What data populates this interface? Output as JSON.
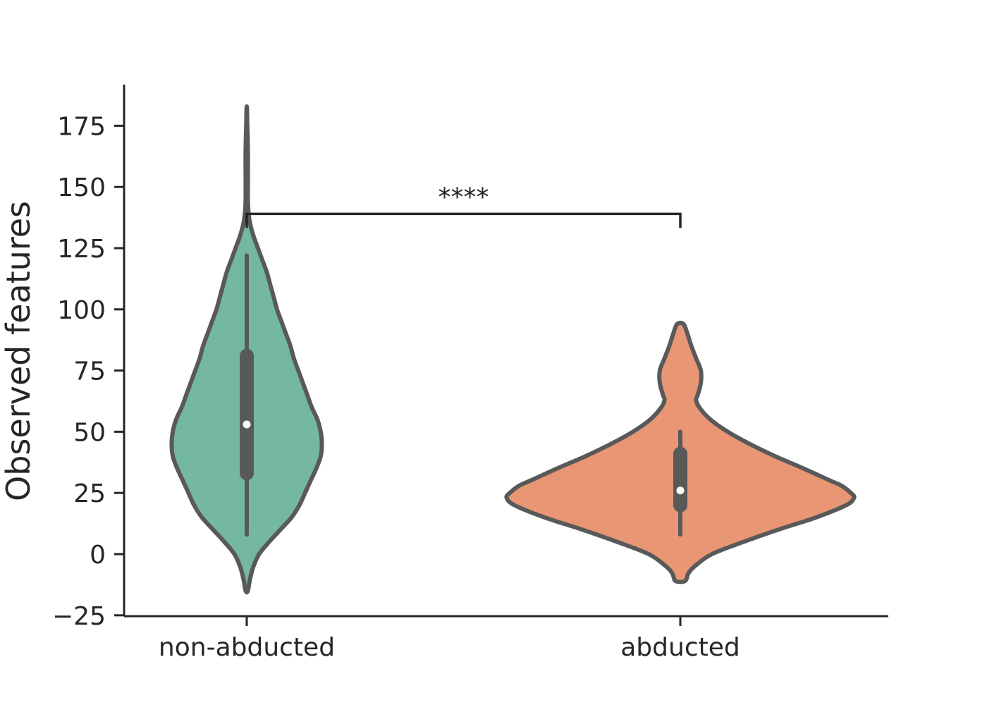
{
  "chart_data": {
    "type": "violin",
    "title": "",
    "xlabel": "",
    "ylabel": "Observed features",
    "ylim": [
      -25,
      192
    ],
    "yticks": [
      -25,
      0,
      25,
      50,
      75,
      100,
      125,
      150,
      175
    ],
    "ytick_labels": [
      "−25",
      "0",
      "25",
      "50",
      "75",
      "100",
      "125",
      "150",
      "175"
    ],
    "categories": [
      "non-abducted",
      "abducted"
    ],
    "grid": false,
    "legend": "none",
    "series": [
      {
        "category": "non-abducted",
        "color": "#74b7a2",
        "whisker": [
          8,
          122
        ],
        "q1": 33,
        "median": 53,
        "q3": 81,
        "density_profile": [
          [
            -15,
            0.01
          ],
          [
            -10,
            0.03
          ],
          [
            -5,
            0.06
          ],
          [
            0,
            0.11
          ],
          [
            5,
            0.2
          ],
          [
            10,
            0.3
          ],
          [
            15,
            0.4
          ],
          [
            20,
            0.47
          ],
          [
            25,
            0.52
          ],
          [
            30,
            0.57
          ],
          [
            35,
            0.62
          ],
          [
            40,
            0.66
          ],
          [
            45,
            0.67
          ],
          [
            50,
            0.66
          ],
          [
            55,
            0.63
          ],
          [
            60,
            0.58
          ],
          [
            65,
            0.54
          ],
          [
            70,
            0.5
          ],
          [
            75,
            0.46
          ],
          [
            80,
            0.42
          ],
          [
            85,
            0.39
          ],
          [
            90,
            0.35
          ],
          [
            95,
            0.31
          ],
          [
            100,
            0.27
          ],
          [
            105,
            0.24
          ],
          [
            110,
            0.21
          ],
          [
            115,
            0.18
          ],
          [
            120,
            0.14
          ],
          [
            125,
            0.1
          ],
          [
            130,
            0.06
          ],
          [
            135,
            0.03
          ],
          [
            140,
            0.015
          ],
          [
            145,
            0.01
          ],
          [
            150,
            0.01
          ],
          [
            155,
            0.01
          ],
          [
            160,
            0.011
          ],
          [
            165,
            0.01
          ],
          [
            170,
            0.008
          ],
          [
            175,
            0.005
          ],
          [
            182,
            0.002
          ]
        ]
      },
      {
        "category": "abducted",
        "color": "#e89674",
        "whisker": [
          8,
          50
        ],
        "q1": 20,
        "median": 26,
        "q3": 41,
        "density_profile": [
          [
            -11,
            0.03
          ],
          [
            -8,
            0.05
          ],
          [
            -5,
            0.09
          ],
          [
            0,
            0.2
          ],
          [
            5,
            0.4
          ],
          [
            10,
            0.62
          ],
          [
            15,
            0.86
          ],
          [
            20,
            1.05
          ],
          [
            23,
            1.1
          ],
          [
            25,
            1.08
          ],
          [
            28,
            1.02
          ],
          [
            30,
            0.95
          ],
          [
            35,
            0.78
          ],
          [
            40,
            0.6
          ],
          [
            45,
            0.44
          ],
          [
            50,
            0.3
          ],
          [
            55,
            0.19
          ],
          [
            60,
            0.12
          ],
          [
            63,
            0.1
          ],
          [
            65,
            0.11
          ],
          [
            70,
            0.13
          ],
          [
            75,
            0.13
          ],
          [
            80,
            0.1
          ],
          [
            85,
            0.07
          ],
          [
            90,
            0.045
          ],
          [
            94,
            0.02
          ]
        ]
      }
    ],
    "significance": {
      "label": "****",
      "from": "non-abducted",
      "to": "abducted",
      "y": 139,
      "tip_bottom": 135
    }
  }
}
